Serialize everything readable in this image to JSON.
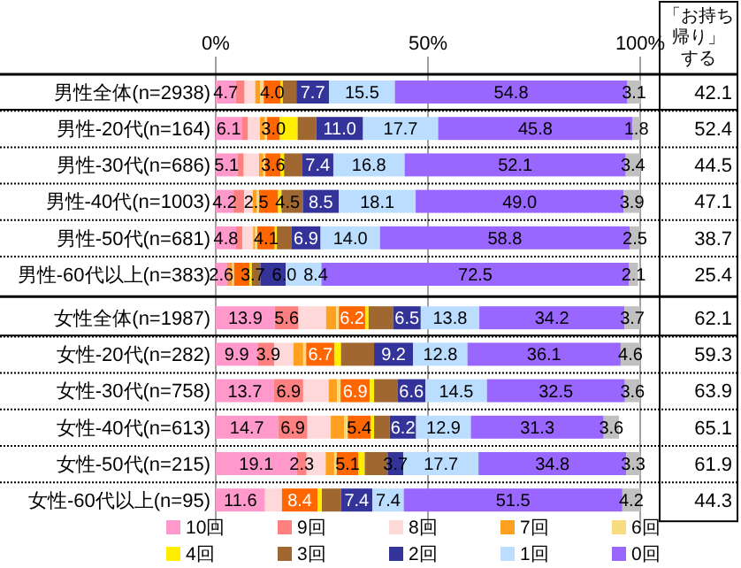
{
  "chart_data": {
    "type": "bar",
    "orientation": "horizontal",
    "stacked": true,
    "categories": [
      "男性全体(n=2938)",
      "男性-20代(n=164)",
      "男性-30代(n=686)",
      "男性-40代(n=1003)",
      "男性-50代(n=681)",
      "男性-60代以上(n=383)",
      "女性全体(n=1987)",
      "女性-20代(n=282)",
      "女性-30代(n=758)",
      "女性-40代(n=613)",
      "女性-50代(n=215)",
      "女性-60代以上(n=95)"
    ],
    "xlim": [
      0,
      100
    ],
    "xticks": [
      {
        "value": 0,
        "label": "0%"
      },
      {
        "value": 50,
        "label": "50%"
      },
      {
        "value": 100,
        "label": "100%"
      }
    ],
    "ref_lines": [
      {
        "axis": "x",
        "value": 50,
        "color": "#a0a0a0"
      }
    ],
    "legend": "bottom",
    "series": [
      {
        "name": "10回",
        "color": "#ff99cc",
        "values": [
          4.7,
          6.1,
          5.1,
          4.2,
          4.8,
          2.6,
          13.9,
          9.9,
          13.7,
          14.7,
          19.1,
          11.6
        ],
        "value_labels": [
          "4.7",
          "6.1",
          "5.1",
          "4.2",
          "4.8",
          "2.6",
          "13.9",
          "9.9",
          "13.7",
          "14.7",
          "19.1",
          "11.6"
        ]
      },
      {
        "name": "9回",
        "color": "#ff8080",
        "values": [
          2.1,
          1.5,
          1.5,
          2.5,
          1.5,
          0.5,
          5.6,
          3.9,
          6.9,
          6.9,
          2.3,
          0
        ],
        "value_labels": [
          null,
          null,
          null,
          "2.5",
          null,
          null,
          "5.6",
          "3.9",
          "6.9",
          "6.9",
          "2.3",
          null
        ]
      },
      {
        "name": "8回",
        "color": "#ffd9d9",
        "values": [
          2.5,
          2.8,
          3.6,
          2.0,
          2.5,
          null,
          6.5,
          4.5,
          6.0,
          5.5,
          4.5,
          4.0
        ]
      },
      {
        "name": "7回",
        "color": "#ffa020",
        "values": [
          1.2,
          1.2,
          1.0,
          1.0,
          0.5,
          0.8,
          2.4,
          2.3,
          2.0,
          3.2,
          2.0,
          0
        ]
      },
      {
        "name": "6回",
        "color": "#f8dc80",
        "values": [
          0.8,
          0.5,
          0.5,
          0.5,
          0.5,
          0.4,
          0.6,
          0.7,
          0.8,
          0.8,
          0.6,
          0
        ]
      },
      {
        "color": "#ff6600",
        "values": [
          4.0,
          3.0,
          3.6,
          4.5,
          4.1,
          3.7,
          6.2,
          6.7,
          6.9,
          5.4,
          5.1,
          8.4
        ],
        "value_labels": [
          "4.0",
          "3.0",
          "3.6",
          "4.5",
          "4.1",
          "3.7",
          "6.2",
          "6.7",
          "6.9",
          "5.4",
          "5.1",
          "8.4"
        ]
      },
      {
        "name": "4回",
        "color": "#ffee00",
        "values": [
          0.5,
          4.2,
          0.8,
          0.8,
          0.5,
          0.5,
          0.8,
          1.5,
          1.0,
          0.8,
          1.5,
          1.0
        ]
      },
      {
        "name": "3回",
        "color": "#a06830",
        "values": [
          3.2,
          4.4,
          4.2,
          5.0,
          3.4,
          2.0,
          5.8,
          7.8,
          5.5,
          3.7,
          5.4,
          4.5
        ]
      },
      {
        "name": "2回",
        "color": "#333399",
        "values": [
          7.7,
          11.0,
          7.4,
          8.5,
          6.9,
          6.0,
          6.5,
          9.2,
          6.6,
          6.2,
          3.7,
          7.4
        ],
        "value_labels": [
          "7.7",
          "11.0",
          "7.4",
          "8.5",
          "6.9",
          "6.0",
          "6.5",
          "9.2",
          "6.6",
          "6.2",
          "3.7",
          "7.4"
        ]
      },
      {
        "name": "1回",
        "color": "#bbddff",
        "values": [
          15.5,
          17.7,
          16.8,
          18.1,
          14.0,
          8.4,
          13.8,
          12.8,
          14.5,
          12.9,
          17.7,
          7.4
        ],
        "value_labels": [
          "15.5",
          "17.7",
          "16.8",
          "18.1",
          "14.0",
          "8.4",
          "13.8",
          "12.8",
          "14.5",
          "12.9",
          "17.7",
          "7.4"
        ]
      },
      {
        "name": "0回",
        "color": "#9966ff",
        "values": [
          54.8,
          45.8,
          52.1,
          49.0,
          58.8,
          72.5,
          34.2,
          36.1,
          32.5,
          31.3,
          34.8,
          51.5
        ],
        "value_labels": [
          "54.8",
          "45.8",
          "52.1",
          "49.0",
          "58.8",
          "72.5",
          "34.2",
          "36.1",
          "32.5",
          "31.3",
          "34.8",
          "51.5"
        ]
      },
      {
        "color": "#c0c0c0",
        "values": [
          3.1,
          1.8,
          3.4,
          3.9,
          2.5,
          2.1,
          3.7,
          4.6,
          3.6,
          3.6,
          3.3,
          4.2
        ],
        "value_labels": [
          "3.1",
          "1.8",
          "3.4",
          "3.9",
          "2.5",
          "2.1",
          "3.7",
          "4.6",
          "3.6",
          "3.6",
          "3.3",
          "4.2"
        ]
      }
    ],
    "annotations": [
      "「お持ち帰り」する",
      "42.1",
      "52.4",
      "44.5",
      "47.1",
      "38.7",
      "25.4",
      "62.1",
      "59.3",
      "63.9",
      "65.1",
      "61.9",
      "44.3"
    ]
  }
}
